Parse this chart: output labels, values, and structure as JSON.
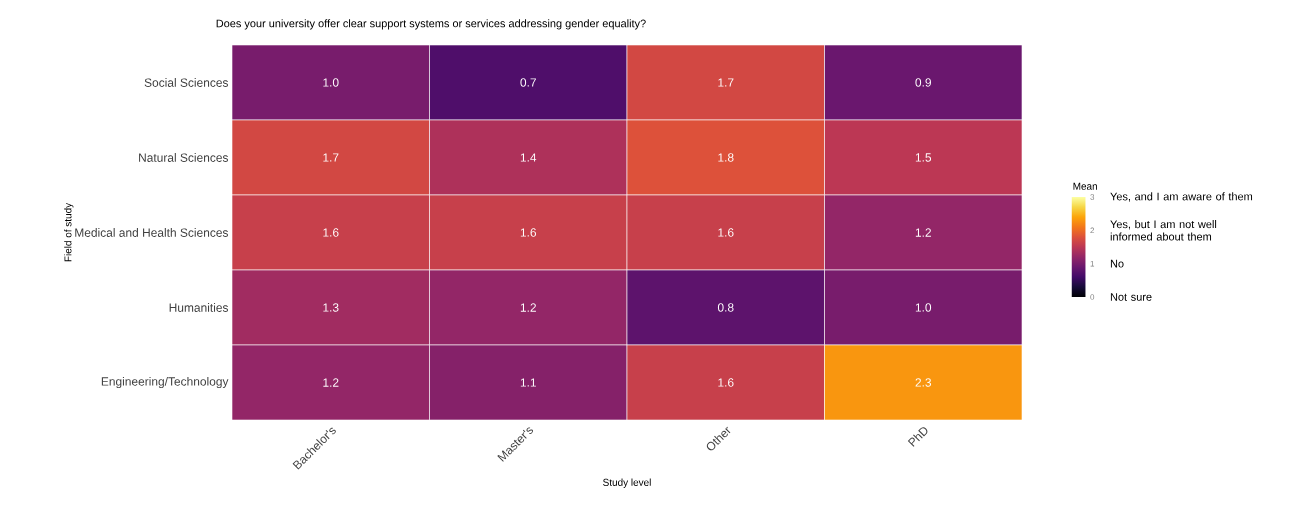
{
  "chart_data": {
    "type": "heatmap",
    "title": "Does your university offer clear support systems or services addressing gender equality?",
    "xlabel": "Study level",
    "ylabel": "Field of study",
    "clabel": "Mean",
    "categories": [
      "Bachelor's",
      "Master's",
      "Other",
      "PhD"
    ],
    "y_categories": [
      "Social Sciences",
      "Natural Sciences",
      "Medical and Health Sciences",
      "Humanities",
      "Engineering/Technology"
    ],
    "cells": [
      [
        1.0,
        0.7,
        1.7,
        0.9
      ],
      [
        1.7,
        1.4,
        1.8,
        1.5
      ],
      [
        1.6,
        1.6,
        1.6,
        1.2
      ],
      [
        1.3,
        1.2,
        0.8,
        1.0
      ],
      [
        1.2,
        1.1,
        1.6,
        2.3
      ]
    ],
    "cell_labels": [
      [
        "1.0",
        "0.7",
        "1.7",
        "0.9"
      ],
      [
        "1.7",
        "1.4",
        "1.8",
        "1.5"
      ],
      [
        "1.6",
        "1.6",
        "1.6",
        "1.2"
      ],
      [
        "1.3",
        "1.2",
        "0.8",
        "1.0"
      ],
      [
        "1.2",
        "1.1",
        "1.6",
        "2.3"
      ]
    ],
    "data_labels": true,
    "clim": [
      0,
      3
    ],
    "cticks": [
      0,
      1,
      2,
      3
    ],
    "annotations": [
      "Not sure",
      "No",
      "Yes, but I am not well informed about them",
      "Yes, and I am aware of them"
    ]
  }
}
